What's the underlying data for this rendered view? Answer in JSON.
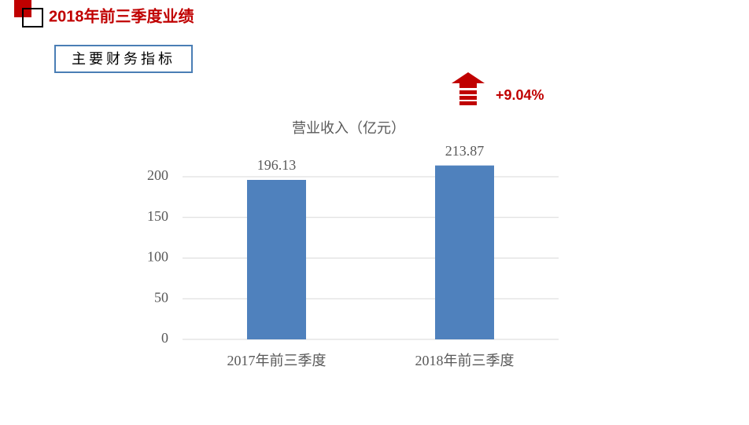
{
  "header": {
    "title": "2018年前三季度业绩",
    "section": "主要财务指标"
  },
  "chart_data": {
    "type": "bar",
    "title": "营业收入（亿元）",
    "annotation": "+9.04%",
    "categories": [
      "2017年前三季度",
      "2018年前三季度"
    ],
    "values": [
      196.13,
      213.87
    ],
    "color": "#4f81bd",
    "ylim": [
      0,
      220
    ],
    "yticks": [
      0,
      50,
      100,
      150,
      200
    ],
    "grid": true
  }
}
